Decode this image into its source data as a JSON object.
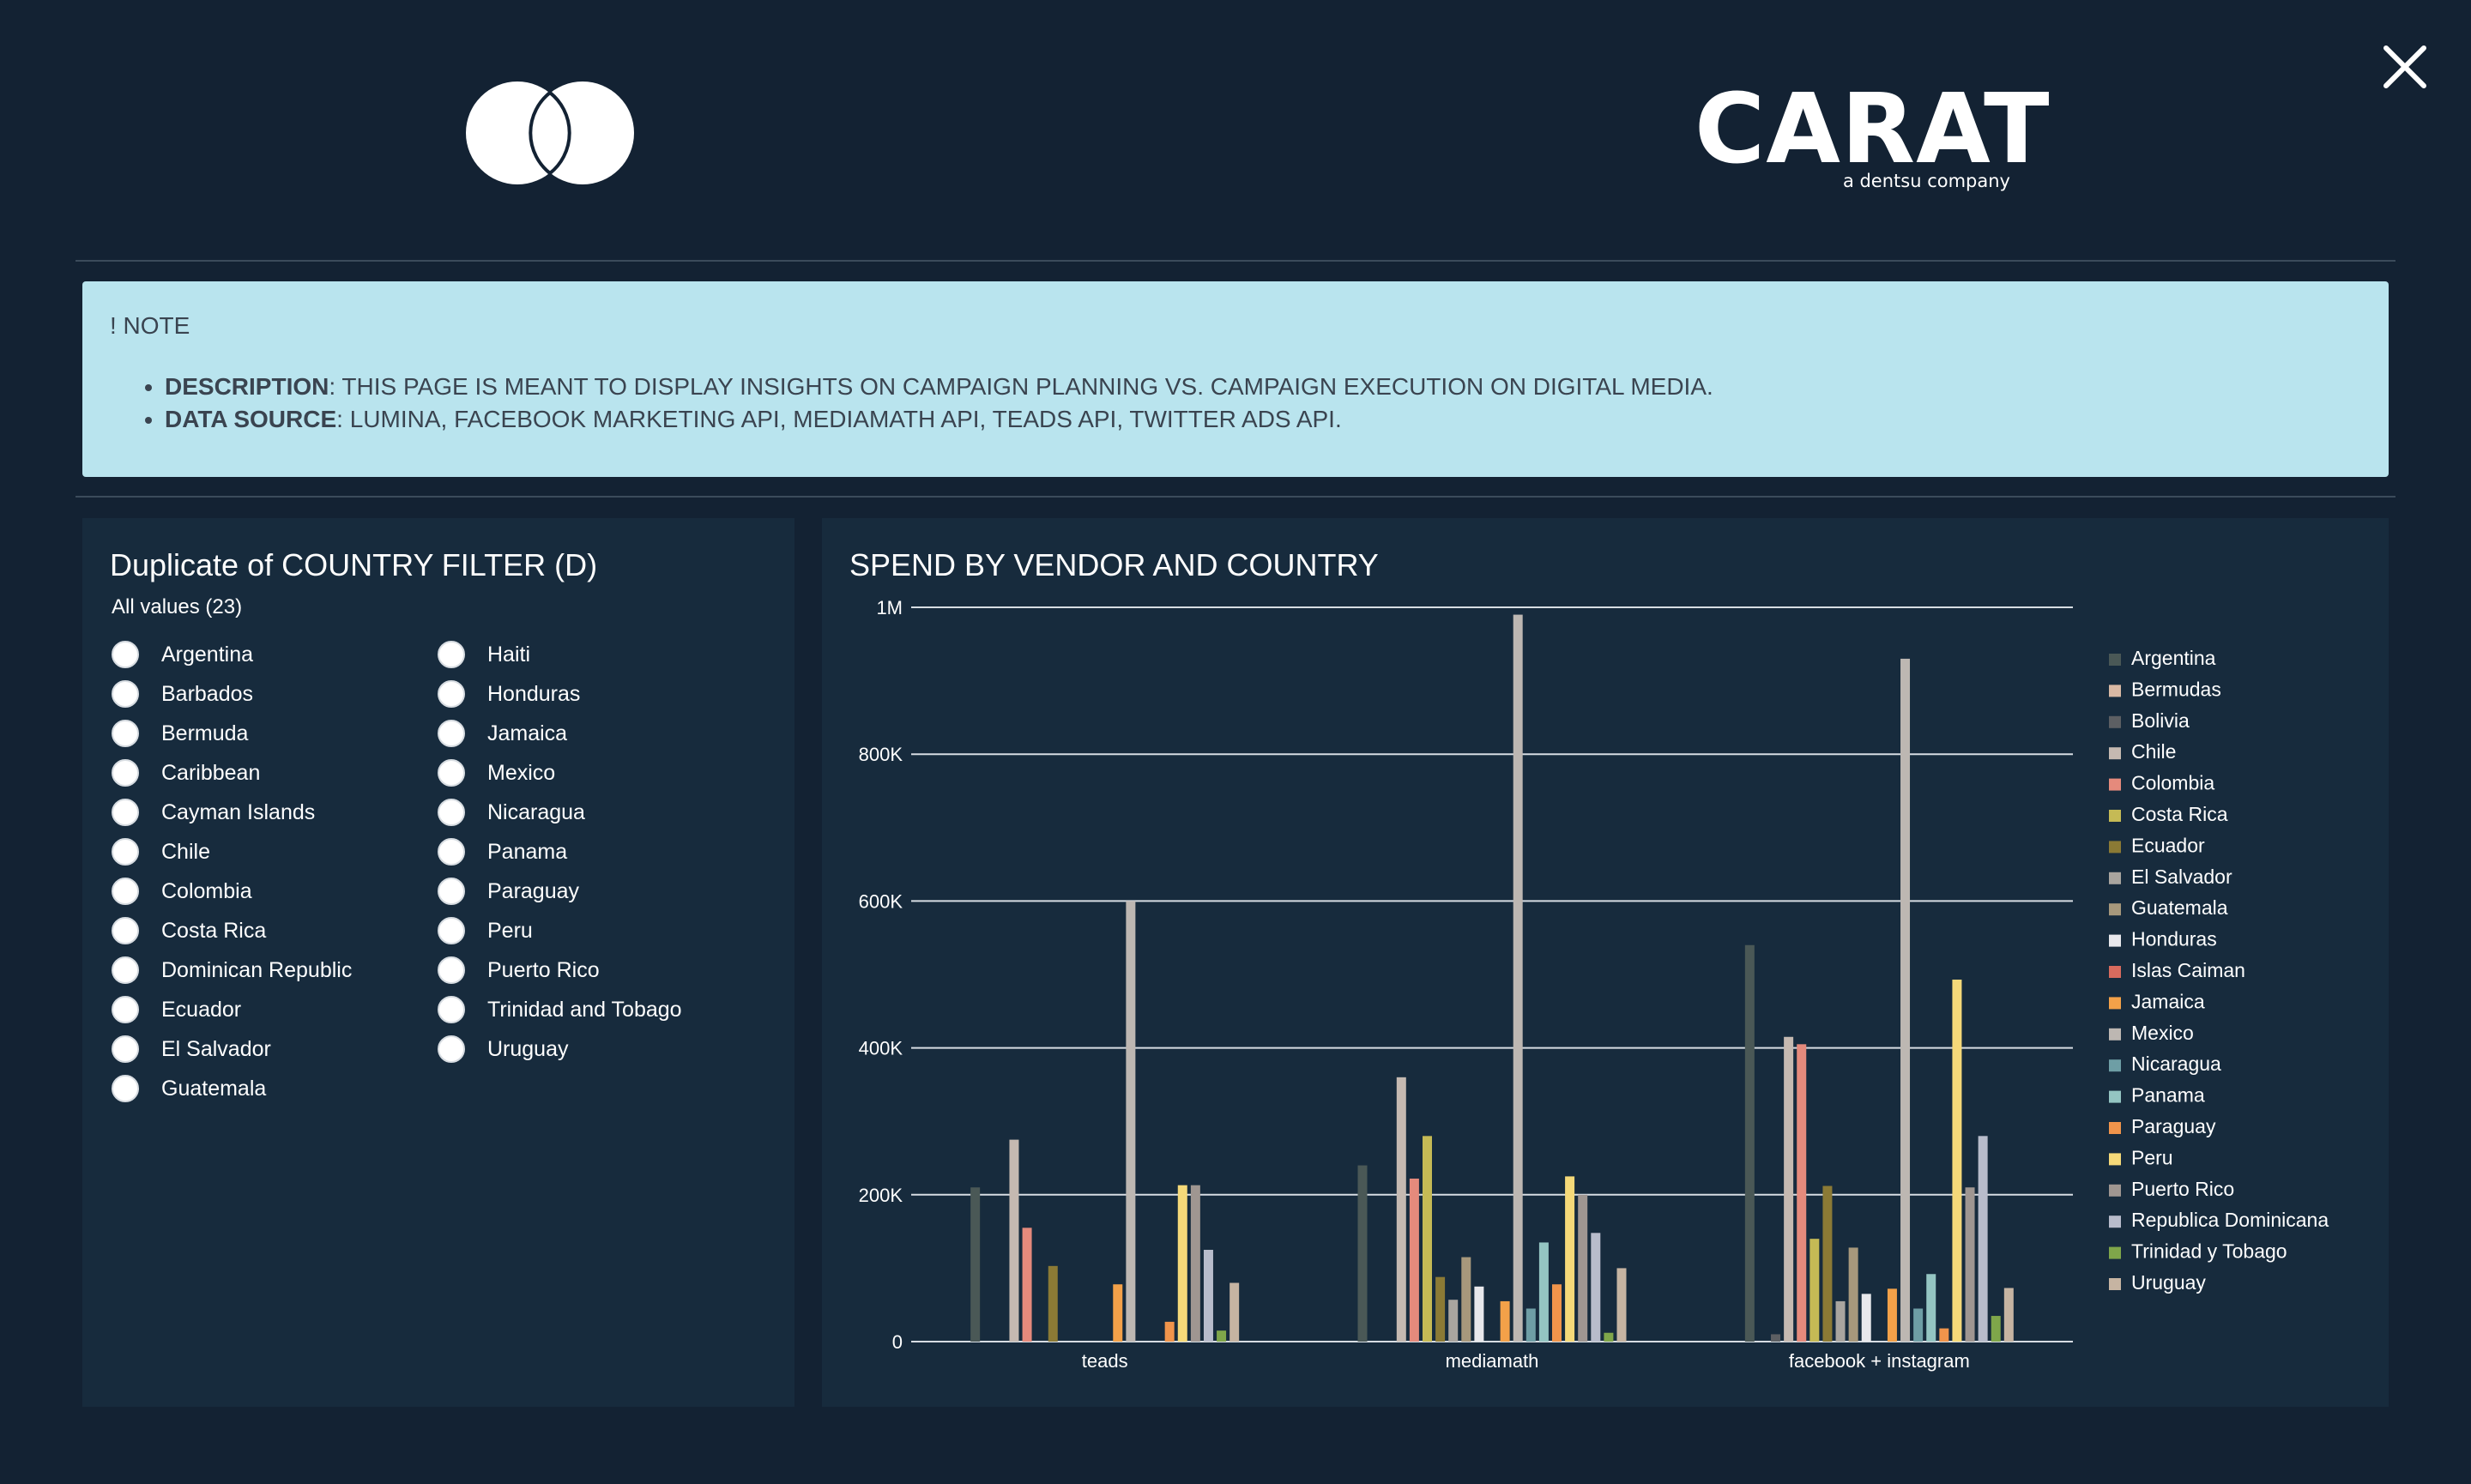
{
  "header": {
    "close_icon": "close-icon",
    "brand_logo_icon": "mastercard-circles-logo",
    "carat_logo": {
      "word": "CARAT",
      "tagline": "a dentsu company"
    }
  },
  "note": {
    "title": "! NOTE",
    "items": [
      {
        "label": "DESCRIPTION",
        "text": ": THIS PAGE IS MEANT TO DISPLAY INSIGHTS ON CAMPAIGN PLANNING VS. CAMPAIGN EXECUTION ON DIGITAL MEDIA."
      },
      {
        "label": "DATA SOURCE",
        "text": ": LUMINA, FACEBOOK MARKETING API, MEDIAMATH API, TEADS API, TWITTER ADS API."
      }
    ]
  },
  "filter": {
    "title": "Duplicate of COUNTRY FILTER (D)",
    "all_values": "All values (23)",
    "col1": [
      "Argentina",
      "Barbados",
      "Bermuda",
      "Caribbean",
      "Cayman Islands",
      "Chile",
      "Colombia",
      "Costa Rica",
      "Dominican Republic",
      "Ecuador",
      "El Salvador",
      "Guatemala"
    ],
    "col2": [
      "Haiti",
      "Honduras",
      "Jamaica",
      "Mexico",
      "Nicaragua",
      "Panama",
      "Paraguay",
      "Peru",
      "Puerto Rico",
      "Trinidad and Tobago",
      "Uruguay"
    ]
  },
  "chart": {
    "title": "SPEND BY VENDOR AND COUNTRY",
    "y_ticks": [
      "0",
      "200K",
      "400K",
      "600K",
      "800K",
      "1M"
    ]
  },
  "chart_data": {
    "type": "bar",
    "title": "SPEND BY VENDOR AND COUNTRY",
    "categories": [
      "teads",
      "mediamath",
      "facebook + instagram"
    ],
    "ylim": [
      0,
      1000000
    ],
    "grid": true,
    "legend_position": "right",
    "series": [
      {
        "name": "Argentina",
        "color": "#4a5856",
        "values": [
          210000,
          240000,
          540000
        ]
      },
      {
        "name": "Bermudas",
        "color": "#d9b9a4",
        "values": [
          0,
          0,
          0
        ]
      },
      {
        "name": "Bolivia",
        "color": "#5c5f63",
        "values": [
          0,
          0,
          10000
        ]
      },
      {
        "name": "Chile",
        "color": "#c5b9b1",
        "values": [
          275000,
          360000,
          415000
        ]
      },
      {
        "name": "Colombia",
        "color": "#e58a7c",
        "values": [
          155000,
          222000,
          405000
        ]
      },
      {
        "name": "Costa Rica",
        "color": "#c5ba55",
        "values": [
          0,
          280000,
          140000
        ]
      },
      {
        "name": "Ecuador",
        "color": "#8b7a35",
        "values": [
          103000,
          88000,
          212000
        ]
      },
      {
        "name": "El Salvador",
        "color": "#a9a59f",
        "values": [
          0,
          57000,
          55000
        ]
      },
      {
        "name": "Guatemala",
        "color": "#a7987c",
        "values": [
          0,
          115000,
          128000
        ]
      },
      {
        "name": "Honduras",
        "color": "#e8e8ec",
        "values": [
          0,
          75000,
          65000
        ]
      },
      {
        "name": "Islas Caiman",
        "color": "#d86b5e",
        "values": [
          0,
          0,
          0
        ]
      },
      {
        "name": "Jamaica",
        "color": "#f3a149",
        "values": [
          78000,
          55000,
          72000
        ]
      },
      {
        "name": "Mexico",
        "color": "#bdb7b2",
        "values": [
          600000,
          990000,
          930000
        ]
      },
      {
        "name": "Nicaragua",
        "color": "#6e9ea5",
        "values": [
          0,
          45000,
          45000
        ]
      },
      {
        "name": "Panama",
        "color": "#94c5c2",
        "values": [
          0,
          135000,
          92000
        ]
      },
      {
        "name": "Paraguay",
        "color": "#f0944b",
        "values": [
          27000,
          78000,
          18000
        ]
      },
      {
        "name": "Peru",
        "color": "#f5d979",
        "values": [
          213000,
          225000,
          493000
        ]
      },
      {
        "name": "Puerto Rico",
        "color": "#9f9691",
        "values": [
          213000,
          200000,
          210000
        ]
      },
      {
        "name": "Republica Dominicana",
        "color": "#b8bccb",
        "values": [
          125000,
          148000,
          280000
        ]
      },
      {
        "name": "Trinidad y Tobago",
        "color": "#7fa64a",
        "values": [
          15000,
          12000,
          35000
        ]
      },
      {
        "name": "Uruguay",
        "color": "#c6b4a2",
        "values": [
          80000,
          100000,
          73000
        ]
      }
    ]
  }
}
